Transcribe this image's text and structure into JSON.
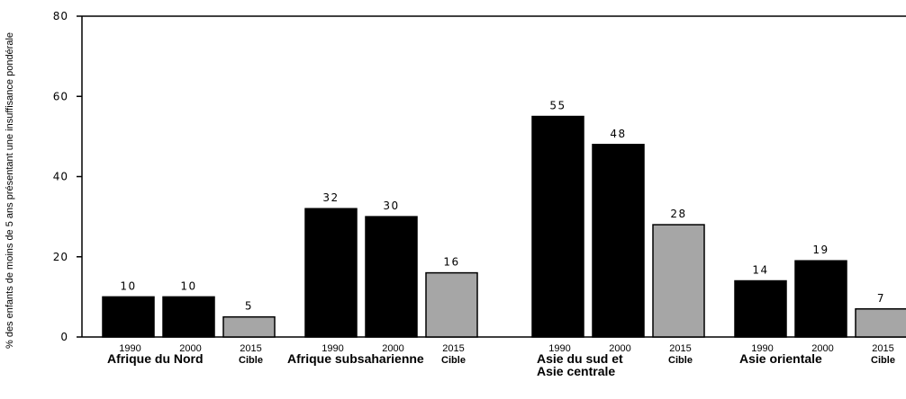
{
  "chart_data": {
    "type": "bar",
    "title": "",
    "ylabel": "% des enfants de moins de 5 ans présentant une insuffisance pondérale",
    "xlabel": "",
    "ylim": [
      0,
      80
    ],
    "yticks": [
      0,
      20,
      40,
      60,
      80
    ],
    "grid": false,
    "legend": "none",
    "colors": {
      "actual": "#000000",
      "target": "#a6a6a6",
      "axis": "#000000"
    },
    "groups": [
      {
        "name_lines": [
          "Afrique du Nord"
        ],
        "bars": [
          {
            "label": "1990",
            "sublabel": "",
            "value": 10,
            "kind": "actual"
          },
          {
            "label": "2000",
            "sublabel": "",
            "value": 10,
            "kind": "actual"
          },
          {
            "label": "2015",
            "sublabel": "Cible",
            "value": 5,
            "kind": "target"
          }
        ]
      },
      {
        "name_lines": [
          "Afrique subsaharienne"
        ],
        "bars": [
          {
            "label": "1990",
            "sublabel": "",
            "value": 32,
            "kind": "actual"
          },
          {
            "label": "2000",
            "sublabel": "",
            "value": 30,
            "kind": "actual"
          },
          {
            "label": "2015",
            "sublabel": "Cible",
            "value": 16,
            "kind": "target"
          }
        ]
      },
      {
        "name_lines": [
          "Asie du sud et",
          "Asie centrale"
        ],
        "bars": [
          {
            "label": "1990",
            "sublabel": "",
            "value": 55,
            "kind": "actual"
          },
          {
            "label": "2000",
            "sublabel": "",
            "value": 48,
            "kind": "actual"
          },
          {
            "label": "2015",
            "sublabel": "Cible",
            "value": 28,
            "kind": "target"
          }
        ]
      },
      {
        "name_lines": [
          "Asie orientale"
        ],
        "bars": [
          {
            "label": "1990",
            "sublabel": "",
            "value": 14,
            "kind": "actual"
          },
          {
            "label": "2000",
            "sublabel": "",
            "value": 19,
            "kind": "actual"
          },
          {
            "label": "2015",
            "sublabel": "Cible",
            "value": 7,
            "kind": "target"
          }
        ]
      }
    ]
  }
}
